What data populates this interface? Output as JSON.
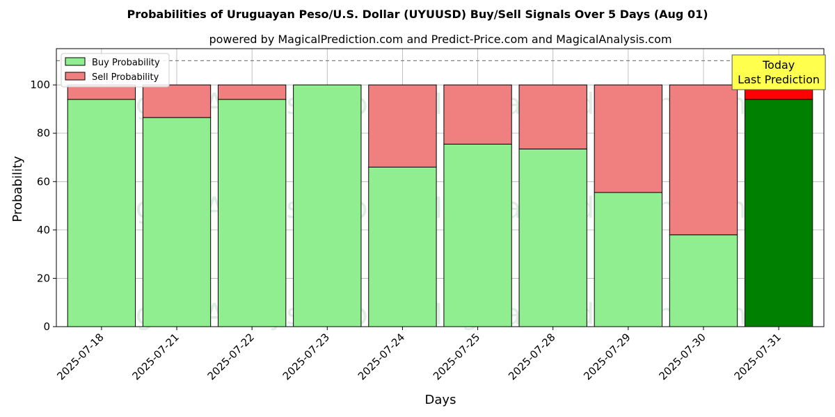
{
  "chart_data": {
    "type": "bar",
    "stacked": true,
    "title": "Probabilities of Uruguayan Peso/U.S. Dollar (UYUUSD) Buy/Sell Signals Over 5 Days (Aug 01)",
    "subtitle": "powered by MagicalPrediction.com and Predict-Price.com and MagicalAnalysis.com",
    "xlabel": "Days",
    "ylabel": "Probability",
    "ylim": [
      0,
      115
    ],
    "yticks": [
      0,
      20,
      40,
      60,
      80,
      100
    ],
    "grid": true,
    "legend_position": "top-left",
    "reference_line": 110,
    "categories": [
      "2025-07-18",
      "2025-07-21",
      "2025-07-22",
      "2025-07-23",
      "2025-07-24",
      "2025-07-25",
      "2025-07-28",
      "2025-07-29",
      "2025-07-30",
      "2025-07-31"
    ],
    "series": [
      {
        "name": "Buy Probability",
        "values": [
          94,
          86.5,
          94,
          100,
          66,
          75.5,
          73.5,
          55.5,
          38,
          94
        ],
        "color": "#90ee90",
        "highlight_color": "#008000"
      },
      {
        "name": "Sell Probability",
        "values": [
          6,
          13.5,
          6,
          0,
          34,
          24.5,
          26.5,
          44.5,
          62,
          6
        ],
        "color": "#f08080",
        "highlight_color": "#ff0000"
      }
    ],
    "highlight_index": 9,
    "annotation": {
      "lines": [
        "Today",
        "Last Prediction"
      ],
      "color": "#ffff4d"
    },
    "watermarks": [
      "MagicalAnalysis.com",
      "MagicalPrediction.com"
    ]
  }
}
